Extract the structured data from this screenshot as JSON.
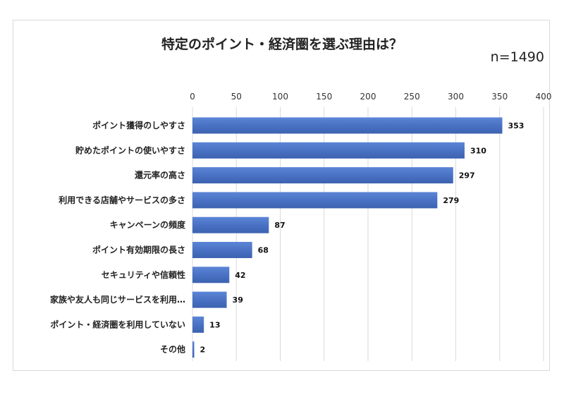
{
  "chart_data": {
    "type": "bar",
    "orientation": "horizontal",
    "title": "特定のポイント・経済圏を選ぶ理由は？",
    "sample_size": "n=1490",
    "categories": [
      "ポイント獲得のしやすさ",
      "貯めたポイントの使いやすさ",
      "還元率の高さ",
      "利用できる店舗やサービスの多さ",
      "キャンペーンの頻度",
      "ポイント有効期限の長さ",
      "セキュリティや信頼性",
      "家族や友人も同じサービスを利用…",
      "ポイント・経済圏を利用していない",
      "その他"
    ],
    "values": [
      353,
      310,
      297,
      279,
      87,
      68,
      42,
      39,
      13,
      2
    ],
    "xlim": [
      0,
      400
    ],
    "xticks": [
      0,
      50,
      100,
      150,
      200,
      250,
      300,
      350,
      400
    ],
    "axis_position": "top",
    "grid": true,
    "bar_color": "#4a72c4"
  }
}
